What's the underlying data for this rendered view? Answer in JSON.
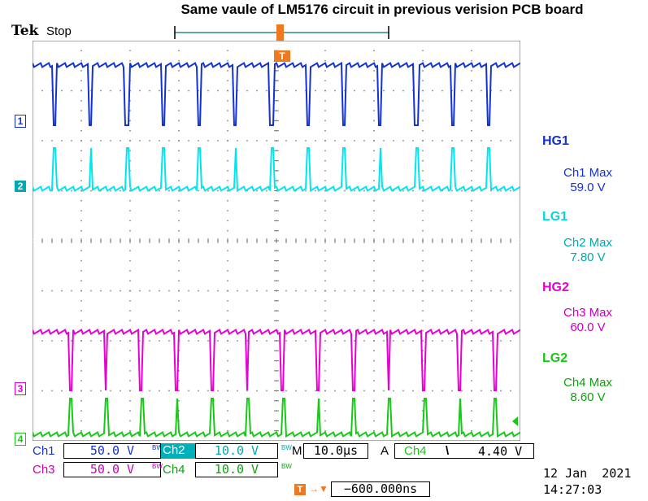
{
  "title": "Same vaule of LM5176 circuit in previous verision PCB board",
  "header": {
    "brand": "Tek",
    "run_state": "Stop"
  },
  "colors": {
    "ch1": "#1432d2",
    "ch2": "#00e5ee",
    "ch3": "#e600d2",
    "ch4": "#18c818",
    "grid": "#7a7a7a",
    "trigger": "#f07820"
  },
  "channels": [
    {
      "id": "1",
      "label": "HG1",
      "measure": "Ch1 Max",
      "value": "59.0 V",
      "color": "#1432d2"
    },
    {
      "id": "2",
      "label": "LG1",
      "measure": "Ch2 Max",
      "value": "7.80 V",
      "color": "#00c8d0"
    },
    {
      "id": "3",
      "label": "HG2",
      "measure": "Ch3 Max",
      "value": "60.0 V",
      "color": "#e600d2"
    },
    {
      "id": "4",
      "label": "LG2",
      "measure": "Ch4 Max",
      "value": "8.60 V",
      "color": "#18c818"
    }
  ],
  "settings": {
    "ch1": {
      "name": "Ch1",
      "scale": "50.0 V",
      "bw": "BW"
    },
    "ch2": {
      "name": "Ch2",
      "scale": "10.0 V",
      "bw": "BW"
    },
    "ch3": {
      "name": "Ch3",
      "scale": "50.0 V",
      "bw": "BW"
    },
    "ch4": {
      "name": "Ch4",
      "scale": "10.0 V",
      "bw": "BW"
    },
    "timebase": {
      "label": "M",
      "value": "10.0µs"
    },
    "trigger": {
      "mode": "A",
      "source": "Ch4",
      "slope": "\\",
      "level": "4.40 V"
    },
    "position": "−600.000ns"
  },
  "datetime": {
    "date": "12 Jan  2021",
    "time": "14:27:03"
  }
}
